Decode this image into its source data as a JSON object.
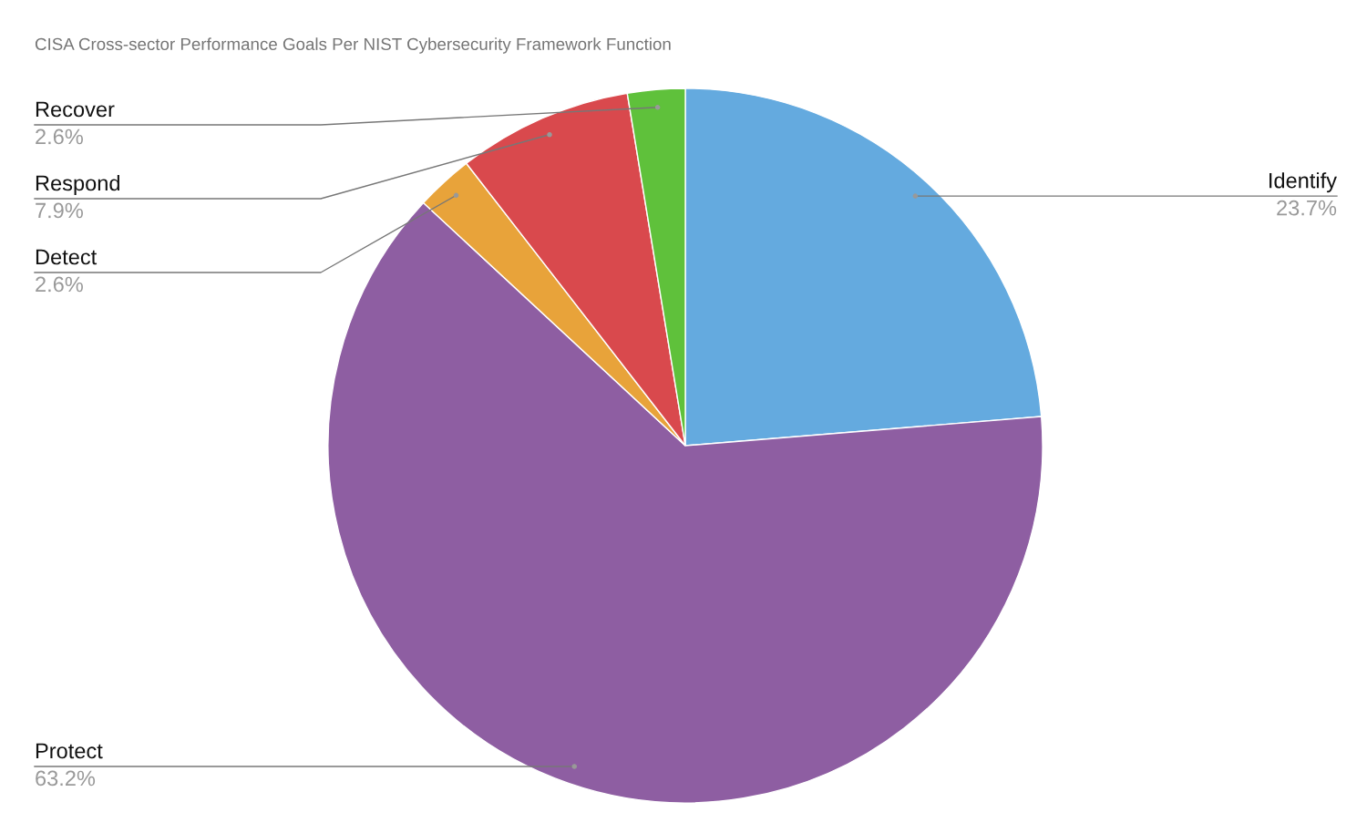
{
  "chart_data": {
    "type": "pie",
    "title": "CISA Cross-sector Performance Goals Per NIST Cybersecurity Framework Function",
    "categories": [
      "Identify",
      "Protect",
      "Detect",
      "Respond",
      "Recover"
    ],
    "values": [
      23.7,
      63.2,
      2.6,
      7.9,
      2.6
    ],
    "colors": [
      "#64aadf",
      "#8e5ea2",
      "#e8a33a",
      "#d9494d",
      "#5fc13b"
    ],
    "value_labels": [
      "23.7%",
      "63.2%",
      "2.6%",
      "7.9%",
      "2.6%"
    ]
  }
}
